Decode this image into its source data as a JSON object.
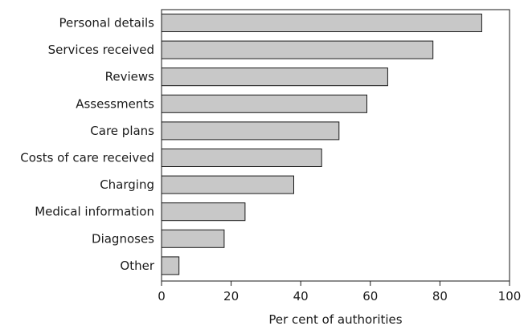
{
  "chart_data": {
    "type": "bar",
    "orientation": "horizontal",
    "categories": [
      "Personal details",
      "Services received",
      "Reviews",
      "Assessments",
      "Care plans",
      "Costs of care received",
      "Charging",
      "Medical information",
      "Diagnoses",
      "Other"
    ],
    "values": [
      92,
      78,
      65,
      59,
      51,
      46,
      38,
      24,
      18,
      5
    ],
    "xlabel": "Per cent of authorities",
    "ylabel": "",
    "xlim": [
      0,
      100
    ],
    "xticks": [
      0,
      20,
      40,
      60,
      80,
      100
    ],
    "grid": false,
    "legend": "none",
    "bar_color": "#c8c8c8",
    "edge_color": "#1a1a1a"
  }
}
